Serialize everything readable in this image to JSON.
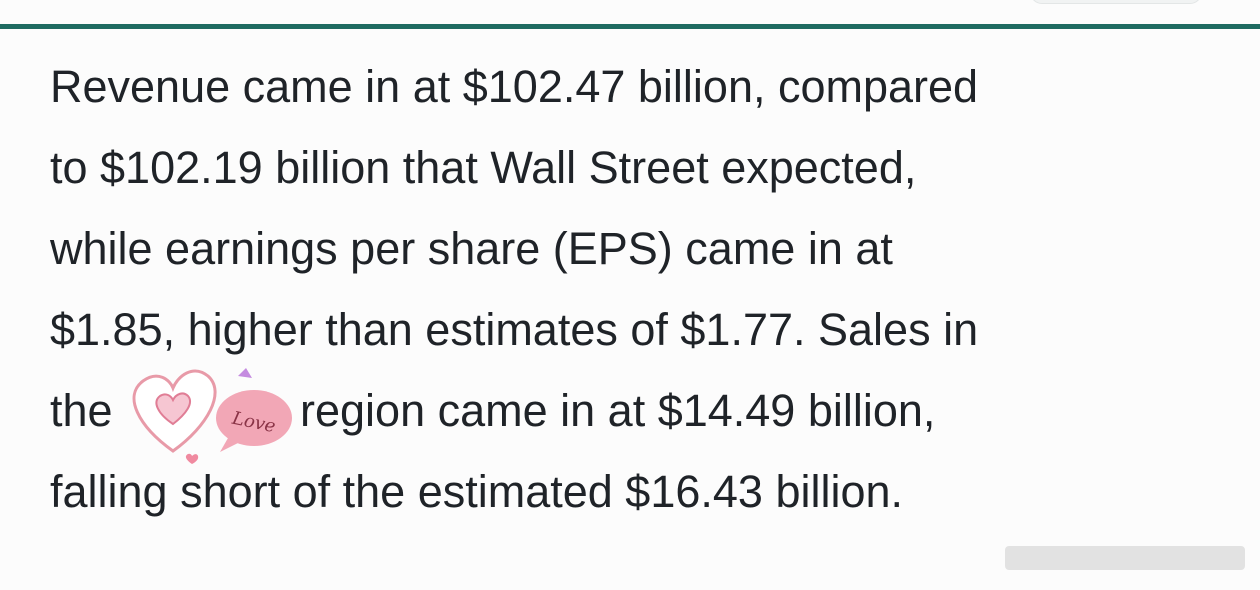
{
  "paragraph": {
    "lines": [
      "Revenue came in at $102.47 billion, compared",
      "to $102.19 billion that Wall Street expected,",
      "while earnings per share (EPS) came in at",
      "$1.85, higher than estimates of $1.77. Sales in",
      [
        "the",
        "region came in at $14.49 billion,"
      ],
      "falling short of the estimated $16.43 billion."
    ]
  },
  "sticker": {
    "label": "Love"
  }
}
